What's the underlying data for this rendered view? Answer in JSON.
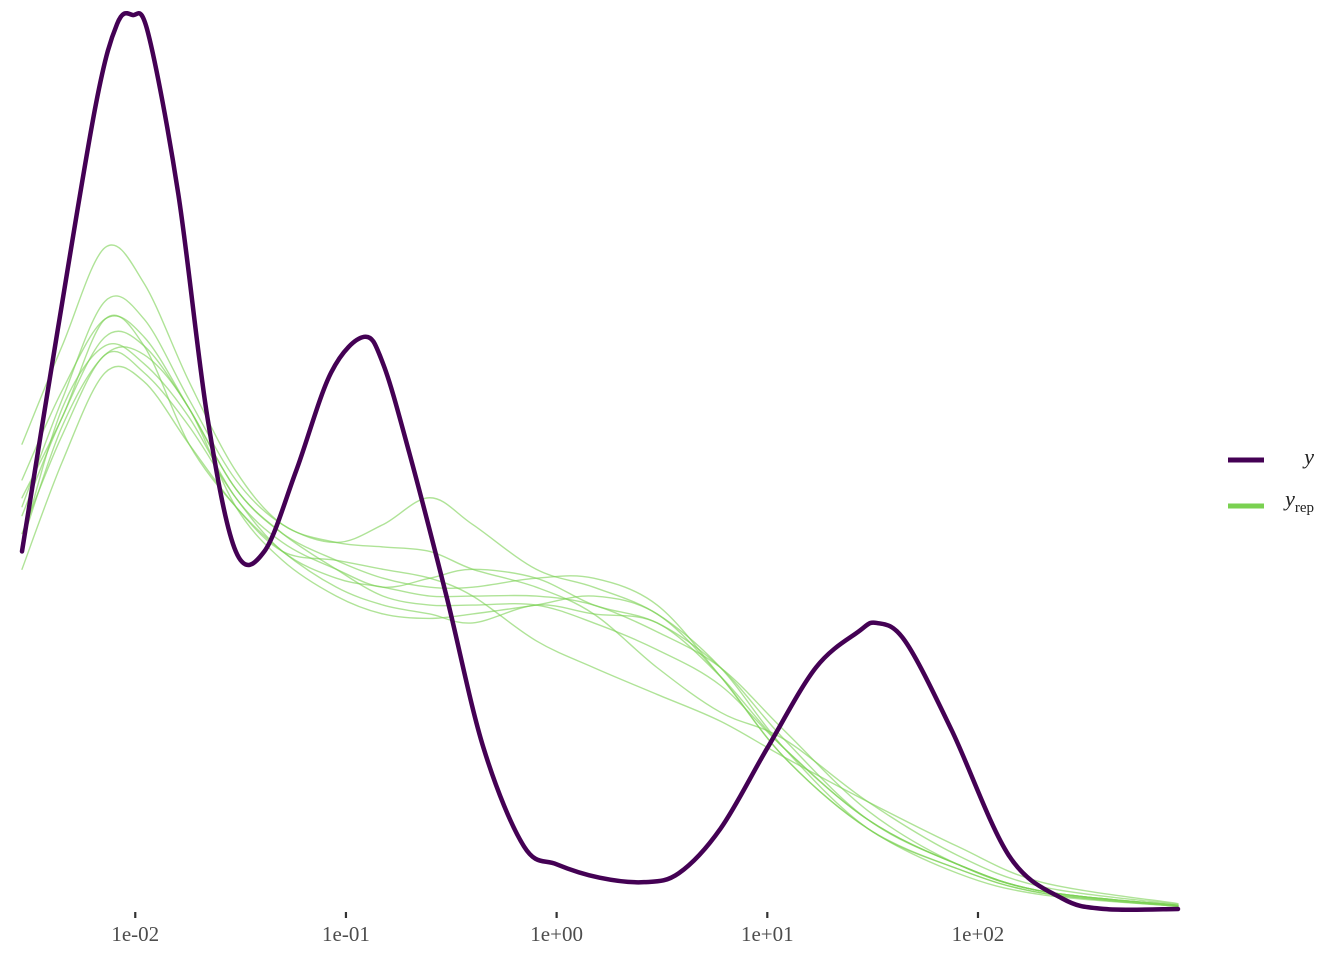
{
  "chart_data": {
    "type": "line",
    "chart_kind": "density overlay (posterior predictive check)",
    "x_scale": "log10",
    "xlim": [
      0.0029,
      890
    ],
    "ylim": [
      0,
      1
    ],
    "x_ticks": [
      {
        "value": 0.01,
        "label": "1e-02"
      },
      {
        "value": 0.1,
        "label": "1e-01"
      },
      {
        "value": 1,
        "label": "1e+00"
      },
      {
        "value": 10,
        "label": "1e+01"
      },
      {
        "value": 100,
        "label": "1e+02"
      }
    ],
    "show_y_axis": false,
    "grid": false,
    "legend_position": "right",
    "legend": [
      {
        "key": "y",
        "label": "y",
        "subscript": "",
        "color": "#440154"
      },
      {
        "key": "yrep",
        "label": "y",
        "subscript": "rep",
        "color": "#7AD151"
      }
    ],
    "series": [
      {
        "name": "y",
        "color": "#440154",
        "role": "observed",
        "points": [
          [
            0.0029,
            0.4
          ],
          [
            0.0043,
            0.65
          ],
          [
            0.0065,
            0.9
          ],
          [
            0.0082,
            0.99
          ],
          [
            0.0097,
            1.0
          ],
          [
            0.0115,
            0.98
          ],
          [
            0.016,
            0.8
          ],
          [
            0.022,
            0.55
          ],
          [
            0.03,
            0.4
          ],
          [
            0.041,
            0.4
          ],
          [
            0.058,
            0.49
          ],
          [
            0.085,
            0.6
          ],
          [
            0.122,
            0.64
          ],
          [
            0.15,
            0.61
          ],
          [
            0.2,
            0.51
          ],
          [
            0.3,
            0.35
          ],
          [
            0.45,
            0.18
          ],
          [
            0.7,
            0.07
          ],
          [
            1.0,
            0.05
          ],
          [
            1.6,
            0.035
          ],
          [
            2.6,
            0.03
          ],
          [
            3.8,
            0.04
          ],
          [
            6.0,
            0.09
          ],
          [
            10.0,
            0.18
          ],
          [
            17.0,
            0.27
          ],
          [
            27.0,
            0.31
          ],
          [
            33.0,
            0.32
          ],
          [
            45.0,
            0.3
          ],
          [
            75.0,
            0.2
          ],
          [
            140.0,
            0.06
          ],
          [
            250.0,
            0.012
          ],
          [
            400.0,
            0.0
          ],
          [
            890.0,
            0.0
          ]
        ]
      },
      {
        "name": "yrep 1",
        "color": "#7AD151",
        "role": "replicate",
        "points": [
          [
            0.0029,
            0.52
          ],
          [
            0.0045,
            0.63
          ],
          [
            0.0072,
            0.74
          ],
          [
            0.011,
            0.7
          ],
          [
            0.018,
            0.59
          ],
          [
            0.03,
            0.49
          ],
          [
            0.05,
            0.43
          ],
          [
            0.09,
            0.41
          ],
          [
            0.15,
            0.405
          ],
          [
            0.25,
            0.4
          ],
          [
            0.4,
            0.38
          ],
          [
            0.8,
            0.36
          ],
          [
            1.5,
            0.33
          ],
          [
            3.0,
            0.27
          ],
          [
            6.0,
            0.22
          ],
          [
            12.0,
            0.19
          ],
          [
            30.0,
            0.12
          ],
          [
            80.0,
            0.06
          ],
          [
            200.0,
            0.025
          ],
          [
            890.0,
            0.005
          ]
        ]
      },
      {
        "name": "yrep 2",
        "color": "#7AD151",
        "role": "replicate",
        "points": [
          [
            0.0029,
            0.45
          ],
          [
            0.0045,
            0.57
          ],
          [
            0.0072,
            0.68
          ],
          [
            0.011,
            0.66
          ],
          [
            0.018,
            0.57
          ],
          [
            0.03,
            0.48
          ],
          [
            0.05,
            0.43
          ],
          [
            0.09,
            0.41
          ],
          [
            0.15,
            0.43
          ],
          [
            0.25,
            0.46
          ],
          [
            0.4,
            0.43
          ],
          [
            0.8,
            0.38
          ],
          [
            1.5,
            0.36
          ],
          [
            3.0,
            0.33
          ],
          [
            6.0,
            0.27
          ],
          [
            12.0,
            0.18
          ],
          [
            30.0,
            0.09
          ],
          [
            80.0,
            0.045
          ],
          [
            200.0,
            0.018
          ],
          [
            890.0,
            0.003
          ]
        ]
      },
      {
        "name": "yrep 3",
        "color": "#7AD151",
        "role": "replicate",
        "points": [
          [
            0.0029,
            0.41
          ],
          [
            0.0045,
            0.56
          ],
          [
            0.0072,
            0.63
          ],
          [
            0.011,
            0.61
          ],
          [
            0.018,
            0.55
          ],
          [
            0.03,
            0.46
          ],
          [
            0.05,
            0.41
          ],
          [
            0.09,
            0.38
          ],
          [
            0.15,
            0.36
          ],
          [
            0.25,
            0.37
          ],
          [
            0.4,
            0.38
          ],
          [
            0.8,
            0.37
          ],
          [
            1.5,
            0.34
          ],
          [
            3.0,
            0.32
          ],
          [
            6.0,
            0.27
          ],
          [
            12.0,
            0.19
          ],
          [
            30.0,
            0.1
          ],
          [
            80.0,
            0.05
          ],
          [
            200.0,
            0.02
          ],
          [
            890.0,
            0.004
          ]
        ]
      },
      {
        "name": "yrep 4",
        "color": "#7AD151",
        "role": "replicate",
        "points": [
          [
            0.0029,
            0.46
          ],
          [
            0.0045,
            0.55
          ],
          [
            0.0072,
            0.66
          ],
          [
            0.011,
            0.63
          ],
          [
            0.018,
            0.52
          ],
          [
            0.03,
            0.45
          ],
          [
            0.05,
            0.4
          ],
          [
            0.09,
            0.36
          ],
          [
            0.15,
            0.34
          ],
          [
            0.25,
            0.33
          ],
          [
            0.4,
            0.32
          ],
          [
            0.8,
            0.34
          ],
          [
            1.5,
            0.33
          ],
          [
            3.0,
            0.32
          ],
          [
            6.0,
            0.26
          ],
          [
            12.0,
            0.18
          ],
          [
            30.0,
            0.1
          ],
          [
            80.0,
            0.05
          ],
          [
            200.0,
            0.02
          ],
          [
            890.0,
            0.004
          ]
        ]
      },
      {
        "name": "yrep 5",
        "color": "#7AD151",
        "role": "replicate",
        "points": [
          [
            0.0029,
            0.41
          ],
          [
            0.0045,
            0.54
          ],
          [
            0.0072,
            0.62
          ],
          [
            0.011,
            0.62
          ],
          [
            0.018,
            0.56
          ],
          [
            0.03,
            0.45
          ],
          [
            0.05,
            0.39
          ],
          [
            0.09,
            0.35
          ],
          [
            0.15,
            0.33
          ],
          [
            0.25,
            0.325
          ],
          [
            0.4,
            0.33
          ],
          [
            0.8,
            0.34
          ],
          [
            1.5,
            0.35
          ],
          [
            3.0,
            0.33
          ],
          [
            6.0,
            0.26
          ],
          [
            12.0,
            0.17
          ],
          [
            30.0,
            0.09
          ],
          [
            80.0,
            0.045
          ],
          [
            200.0,
            0.018
          ],
          [
            890.0,
            0.003
          ]
        ]
      },
      {
        "name": "yrep 6",
        "color": "#7AD151",
        "role": "replicate",
        "points": [
          [
            0.0029,
            0.48
          ],
          [
            0.0045,
            0.58
          ],
          [
            0.0072,
            0.66
          ],
          [
            0.011,
            0.64
          ],
          [
            0.018,
            0.56
          ],
          [
            0.03,
            0.47
          ],
          [
            0.05,
            0.42
          ],
          [
            0.09,
            0.39
          ],
          [
            0.15,
            0.37
          ],
          [
            0.25,
            0.36
          ],
          [
            0.4,
            0.36
          ],
          [
            0.8,
            0.37
          ],
          [
            1.5,
            0.37
          ],
          [
            3.0,
            0.34
          ],
          [
            6.0,
            0.26
          ],
          [
            12.0,
            0.17
          ],
          [
            30.0,
            0.09
          ],
          [
            80.0,
            0.04
          ],
          [
            200.0,
            0.016
          ],
          [
            890.0,
            0.003
          ]
        ]
      },
      {
        "name": "yrep 7",
        "color": "#7AD151",
        "role": "replicate",
        "points": [
          [
            0.0029,
            0.38
          ],
          [
            0.0045,
            0.5
          ],
          [
            0.0072,
            0.6
          ],
          [
            0.011,
            0.59
          ],
          [
            0.018,
            0.52
          ],
          [
            0.03,
            0.45
          ],
          [
            0.05,
            0.4
          ],
          [
            0.09,
            0.39
          ],
          [
            0.15,
            0.38
          ],
          [
            0.25,
            0.37
          ],
          [
            0.4,
            0.35
          ],
          [
            0.8,
            0.3
          ],
          [
            1.5,
            0.27
          ],
          [
            3.0,
            0.24
          ],
          [
            6.0,
            0.21
          ],
          [
            12.0,
            0.17
          ],
          [
            30.0,
            0.12
          ],
          [
            80.0,
            0.07
          ],
          [
            200.0,
            0.03
          ],
          [
            890.0,
            0.006
          ]
        ]
      },
      {
        "name": "yrep 8",
        "color": "#7AD151",
        "role": "replicate",
        "points": [
          [
            0.0029,
            0.44
          ],
          [
            0.0045,
            0.55
          ],
          [
            0.0072,
            0.64
          ],
          [
            0.011,
            0.63
          ],
          [
            0.018,
            0.56
          ],
          [
            0.03,
            0.47
          ],
          [
            0.05,
            0.42
          ],
          [
            0.09,
            0.38
          ],
          [
            0.15,
            0.35
          ],
          [
            0.25,
            0.34
          ],
          [
            0.4,
            0.34
          ],
          [
            0.8,
            0.34
          ],
          [
            1.5,
            0.32
          ],
          [
            3.0,
            0.29
          ],
          [
            6.0,
            0.25
          ],
          [
            12.0,
            0.18
          ],
          [
            30.0,
            0.1
          ],
          [
            80.0,
            0.05
          ],
          [
            200.0,
            0.02
          ],
          [
            890.0,
            0.004
          ]
        ]
      },
      {
        "name": "yrep 9",
        "color": "#7AD151",
        "role": "replicate",
        "points": [
          [
            0.0029,
            0.42
          ],
          [
            0.0045,
            0.53
          ],
          [
            0.0072,
            0.62
          ],
          [
            0.011,
            0.6
          ],
          [
            0.018,
            0.54
          ],
          [
            0.03,
            0.46
          ],
          [
            0.05,
            0.4
          ],
          [
            0.09,
            0.37
          ],
          [
            0.15,
            0.36
          ],
          [
            0.25,
            0.35
          ],
          [
            0.4,
            0.35
          ],
          [
            0.8,
            0.35
          ],
          [
            1.5,
            0.34
          ],
          [
            3.0,
            0.31
          ],
          [
            6.0,
            0.27
          ],
          [
            12.0,
            0.2
          ],
          [
            30.0,
            0.11
          ],
          [
            80.0,
            0.05
          ],
          [
            200.0,
            0.02
          ],
          [
            890.0,
            0.004
          ]
        ]
      }
    ]
  }
}
